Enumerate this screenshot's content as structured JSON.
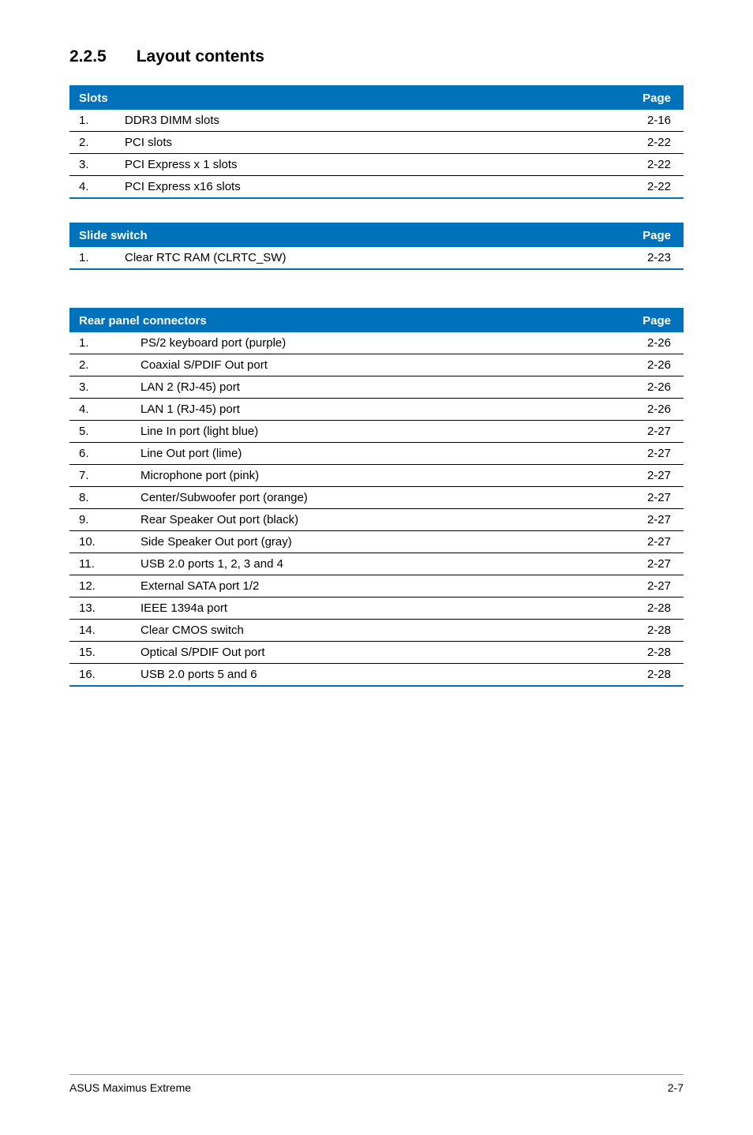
{
  "heading": {
    "number": "2.2.5",
    "title": "Layout contents"
  },
  "tables": {
    "slots": {
      "header_left": "Slots",
      "header_right": "Page",
      "header_bg": "#0072bc",
      "header_fg": "#ffffff",
      "border_color": "#0072bc",
      "rows": [
        {
          "idx": "1.",
          "label": "DDR3 DIMM slots",
          "page": "2-16"
        },
        {
          "idx": "2.",
          "label": "PCI slots",
          "page": "2-22"
        },
        {
          "idx": "3.",
          "label": "PCI Express x 1 slots",
          "page": "2-22"
        },
        {
          "idx": "4.",
          "label": "PCI Express x16 slots",
          "page": "2-22"
        }
      ]
    },
    "slide_switch": {
      "header_left": "Slide switch",
      "header_right": "Page",
      "header_bg": "#0072bc",
      "header_fg": "#ffffff",
      "border_color": "#0072bc",
      "rows": [
        {
          "idx": "1.",
          "label": "Clear RTC RAM (CLRTC_SW)",
          "page": "2-23"
        }
      ]
    },
    "rear_panel": {
      "header_left": "Rear panel connectors",
      "header_right": "Page",
      "header_bg": "#0072bc",
      "header_fg": "#ffffff",
      "border_color": "#0072bc",
      "rows": [
        {
          "idx": "1.",
          "label": "PS/2 keyboard port (purple)",
          "page": "2-26"
        },
        {
          "idx": "2.",
          "label": "Coaxial S/PDIF Out port",
          "page": "2-26"
        },
        {
          "idx": "3.",
          "label": "LAN 2 (RJ-45) port",
          "page": "2-26"
        },
        {
          "idx": "4.",
          "label": "LAN 1 (RJ-45) port",
          "page": "2-26"
        },
        {
          "idx": "5.",
          "label": "Line In port (light blue)",
          "page": "2-27"
        },
        {
          "idx": "6.",
          "label": "Line Out port (lime)",
          "page": "2-27"
        },
        {
          "idx": "7.",
          "label": "Microphone port (pink)",
          "page": "2-27"
        },
        {
          "idx": "8.",
          "label": "Center/Subwoofer port (orange)",
          "page": "2-27"
        },
        {
          "idx": "9.",
          "label": "Rear Speaker Out port (black)",
          "page": "2-27"
        },
        {
          "idx": "10.",
          "label": "Side Speaker Out port (gray)",
          "page": "2-27"
        },
        {
          "idx": "11.",
          "label": "USB 2.0 ports 1, 2, 3 and 4",
          "page": "2-27"
        },
        {
          "idx": "12.",
          "label": "External SATA port 1/2",
          "page": "2-27"
        },
        {
          "idx": "13.",
          "label": "IEEE 1394a port",
          "page": "2-28"
        },
        {
          "idx": "14.",
          "label": "Clear CMOS switch",
          "page": "2-28"
        },
        {
          "idx": "15.",
          "label": "Optical S/PDIF Out port",
          "page": "2-28"
        },
        {
          "idx": "16.",
          "label": "USB 2.0 ports 5 and 6",
          "page": "2-28"
        }
      ]
    }
  },
  "footer": {
    "left": "ASUS Maximus Extreme",
    "right": "2-7"
  }
}
